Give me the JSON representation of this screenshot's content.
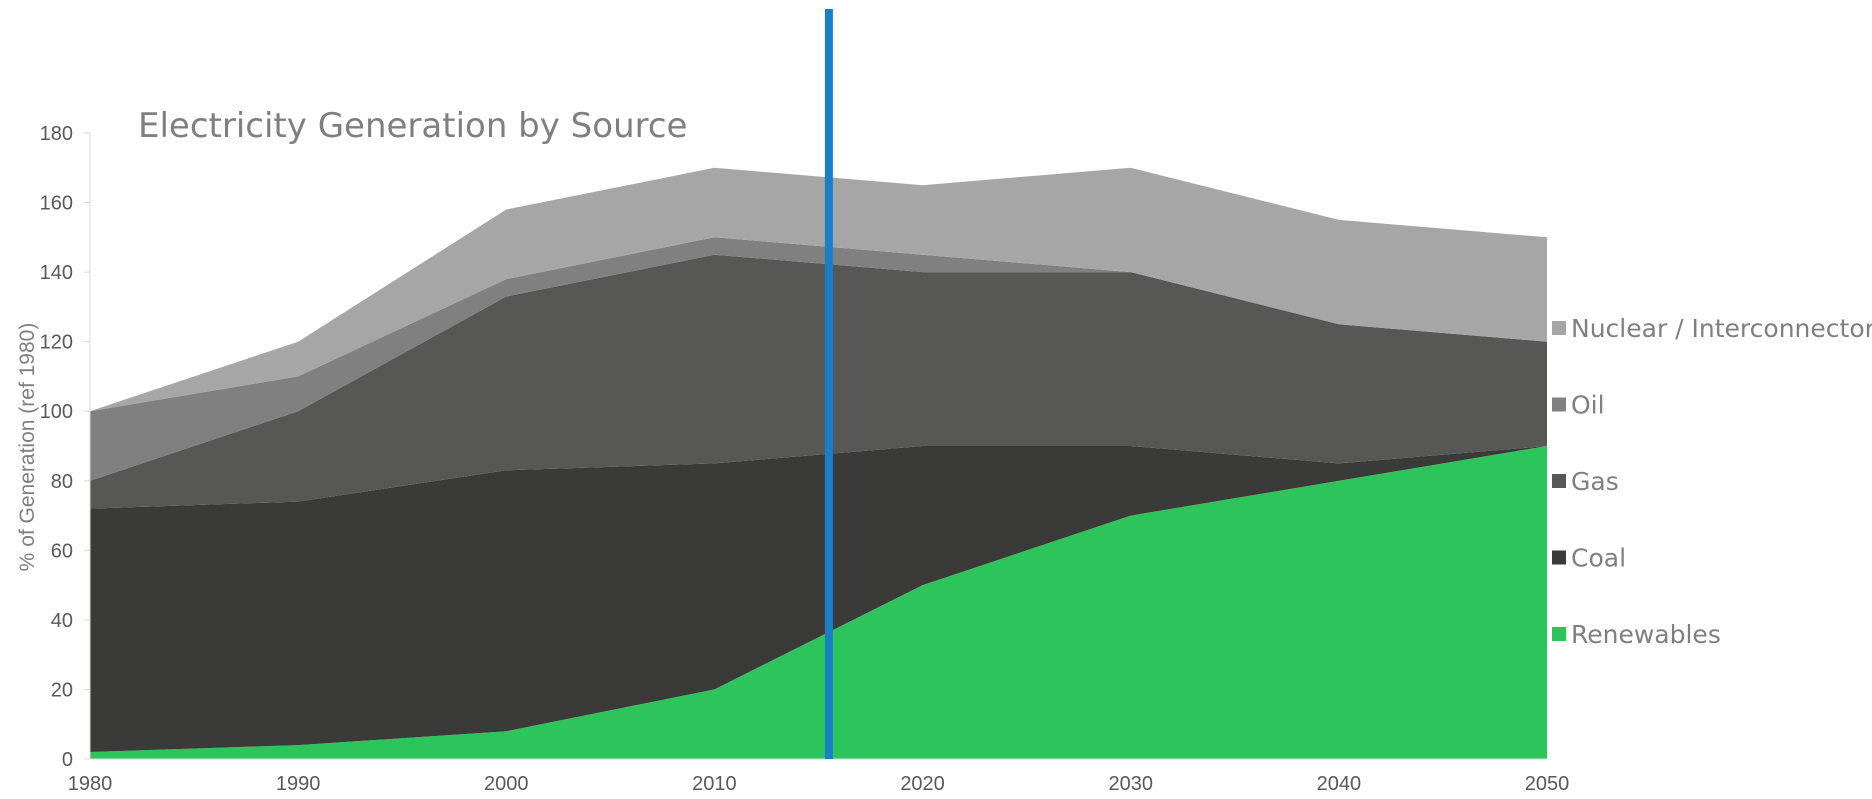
{
  "chart_data": {
    "type": "area",
    "stacked": true,
    "title": "Electricity Generation by Source",
    "xlabel": "",
    "ylabel": "% of Generation (ref 1980)",
    "x": [
      1980,
      1990,
      2000,
      2010,
      2020,
      2030,
      2040,
      2050
    ],
    "xlim": [
      1980,
      2050
    ],
    "ylim": [
      0,
      180
    ],
    "yticks": [
      0,
      20,
      40,
      60,
      80,
      100,
      120,
      140,
      160,
      180
    ],
    "grid": false,
    "legend_position": "right",
    "series": [
      {
        "name": "Renewables",
        "color": "#2dc45c",
        "values": [
          2,
          4,
          8,
          20,
          50,
          70,
          80,
          90
        ]
      },
      {
        "name": "Coal",
        "color": "#3a3a38",
        "values": [
          70,
          70,
          75,
          65,
          40,
          20,
          5,
          0
        ]
      },
      {
        "name": "Gas",
        "color": "#575855",
        "values": [
          8,
          26,
          50,
          60,
          50,
          50,
          40,
          30
        ]
      },
      {
        "name": "Oil",
        "color": "#808080",
        "values": [
          20,
          10,
          5,
          5,
          5,
          0,
          0,
          0
        ]
      },
      {
        "name": "Nuclear / Interconnector",
        "color": "#a6a6a6",
        "values": [
          0,
          10,
          20,
          20,
          20,
          30,
          30,
          30
        ]
      }
    ],
    "marker_line": {
      "x": 2015.5,
      "color": "#1a7fc9"
    }
  }
}
